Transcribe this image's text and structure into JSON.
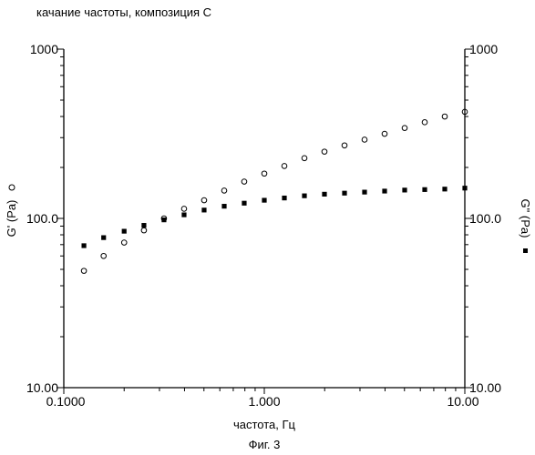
{
  "chart_data": {
    "type": "scatter",
    "title": "качание частоты, композиция С",
    "xlabel": "частота, Гц",
    "ylabel_left": "G' (Pa)",
    "ylabel_right": "G\" (Pa)",
    "caption": "Фиг. 3",
    "x_scale": "log",
    "y_scale": "log",
    "xlim": [
      0.1,
      10
    ],
    "ylim": [
      10,
      1000
    ],
    "x_tick_labels": [
      "0.1000",
      "1.000",
      "10.00"
    ],
    "y_tick_labels": [
      "10.00",
      "100.0",
      "1000"
    ],
    "grid": false,
    "series": [
      {
        "name": "G' (Pa)",
        "marker": "open-circle",
        "x": [
          0.126,
          0.158,
          0.2,
          0.251,
          0.316,
          0.398,
          0.501,
          0.631,
          0.794,
          1.0,
          1.259,
          1.585,
          1.995,
          2.512,
          3.162,
          3.981,
          5.012,
          6.31,
          7.943,
          10.0
        ],
        "y": [
          49,
          60,
          72,
          85,
          100,
          114,
          128,
          146,
          165,
          184,
          204,
          227,
          248,
          270,
          292,
          316,
          342,
          370,
          400,
          426
        ]
      },
      {
        "name": "G\" (Pa)",
        "marker": "filled-square",
        "x": [
          0.126,
          0.158,
          0.2,
          0.251,
          0.316,
          0.398,
          0.501,
          0.631,
          0.794,
          1.0,
          1.259,
          1.585,
          1.995,
          2.512,
          3.162,
          3.981,
          5.012,
          6.31,
          7.943,
          10.0
        ],
        "y": [
          69,
          77,
          84,
          91,
          98,
          105,
          112,
          118,
          123,
          128,
          132,
          136,
          139,
          141,
          143,
          145,
          147,
          148,
          149,
          151
        ]
      }
    ]
  }
}
